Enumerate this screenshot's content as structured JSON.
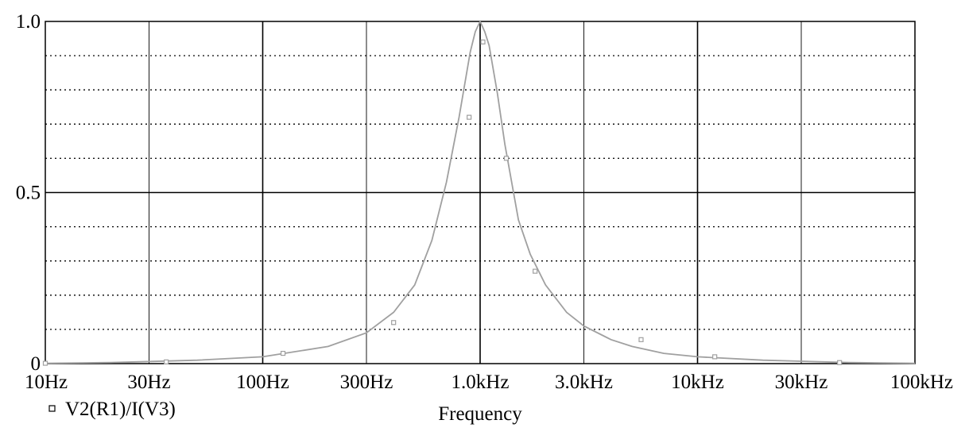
{
  "chart_data": {
    "type": "line",
    "x_scale": "log",
    "x_range_hz": [
      10,
      100000
    ],
    "ylim": [
      0,
      1.0
    ],
    "xlabel": "Frequency",
    "ylabel": "",
    "title": "",
    "x_tick_labels": [
      "10Hz",
      "30Hz",
      "100Hz",
      "300Hz",
      "1.0kHz",
      "3.0kHz",
      "10kHz",
      "30kHz",
      "100kHz"
    ],
    "x_tick_values_hz": [
      10,
      30,
      100,
      300,
      1000,
      3000,
      10000,
      30000,
      100000
    ],
    "y_tick_labels": [
      "1.0",
      "0.5",
      "0"
    ],
    "y_tick_values": [
      1.0,
      0.5,
      0
    ],
    "y_minor_gridlines": [
      0.1,
      0.2,
      0.3,
      0.4,
      0.6,
      0.7,
      0.8,
      0.9
    ],
    "grid": true,
    "legend_position": "bottom-left",
    "series": [
      {
        "name": "V2(R1)/I(V3)",
        "color": "#a0a0a0",
        "marker": "square",
        "x": [
          10,
          20,
          50,
          100,
          200,
          300,
          400,
          500,
          600,
          700,
          800,
          900,
          950,
          1000,
          1050,
          1100,
          1200,
          1300,
          1500,
          1700,
          2000,
          2500,
          3000,
          4000,
          5000,
          7000,
          10000,
          20000,
          50000,
          100000
        ],
        "y": [
          0.001,
          0.003,
          0.01,
          0.02,
          0.05,
          0.09,
          0.15,
          0.23,
          0.36,
          0.53,
          0.72,
          0.91,
          0.97,
          1.0,
          0.97,
          0.93,
          0.79,
          0.64,
          0.42,
          0.32,
          0.23,
          0.15,
          0.11,
          0.07,
          0.05,
          0.03,
          0.02,
          0.01,
          0.003,
          0.001
        ],
        "marker_x": [
          10,
          36,
          124,
          400,
          890,
          1030,
          1320,
          1790,
          5500,
          12000,
          45000
        ],
        "marker_y": [
          0.001,
          0.005,
          0.03,
          0.12,
          0.72,
          0.94,
          0.6,
          0.27,
          0.07,
          0.02,
          0.003
        ]
      }
    ]
  }
}
